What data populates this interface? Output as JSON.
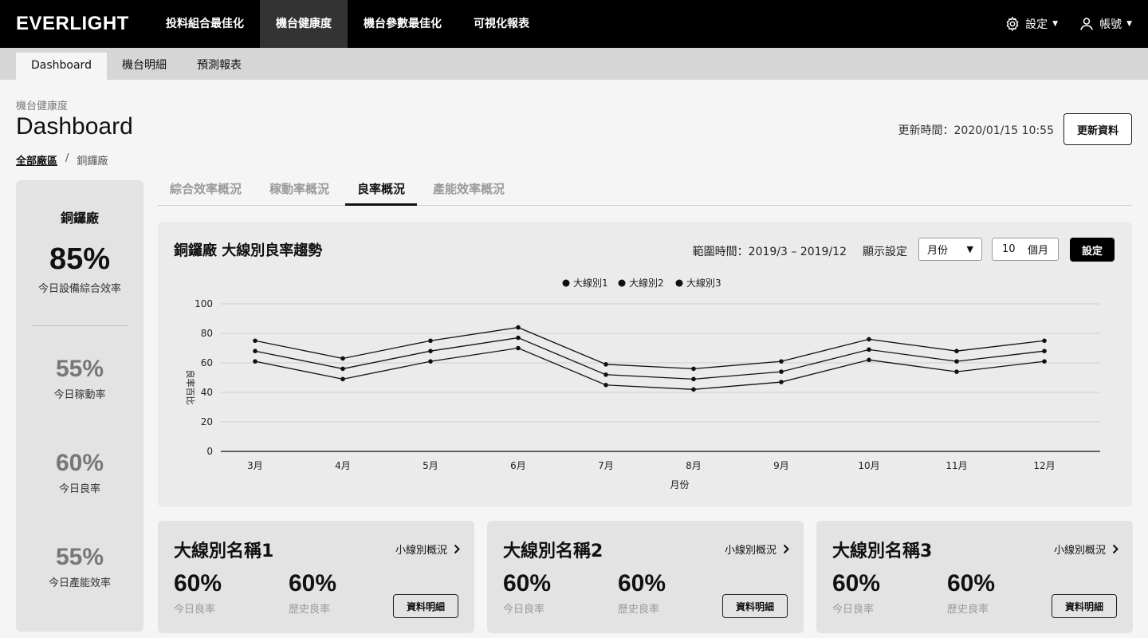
{
  "brand": "EVERLIGHT",
  "top_nav": [
    "投料組合最佳化",
    "機台健康度",
    "機台參數最佳化",
    "可視化報表"
  ],
  "top_nav_active": 1,
  "top_right": {
    "settings": "設定",
    "account": "帳號"
  },
  "sub_nav": [
    "Dashboard",
    "機台明細",
    "預測報表"
  ],
  "sub_nav_active": 0,
  "header": {
    "section": "機台健康度",
    "title": "Dashboard",
    "breadcrumb_root": "全部廠區",
    "breadcrumb_sep": "/",
    "breadcrumb_current": "銅鑼廠",
    "update_time": "更新時間：2020/01/15 10:55",
    "refresh_label": "更新資料"
  },
  "sidebar": {
    "factory": "銅鑼廠",
    "metrics": [
      {
        "value": "85%",
        "label": "今日設備綜合效率"
      },
      {
        "value": "55%",
        "label": "今日稼動率"
      },
      {
        "value": "60%",
        "label": "今日良率"
      },
      {
        "value": "55%",
        "label": "今日產能效率"
      }
    ]
  },
  "tabs": [
    "綜合效率概況",
    "稼動率概況",
    "良率概況",
    "產能效率概況"
  ],
  "tab_active": 2,
  "chart_panel": {
    "title": "銅鑼廠 大線別良率趨勢",
    "range": "範圍時間：2019/3 – 2019/12",
    "display_label": "顯示設定",
    "period_value": "月份",
    "months_value": "10",
    "months_unit": "個月",
    "set_label": "設定"
  },
  "chart_data": {
    "type": "line",
    "xlabel": "月份",
    "ylabel": "良率百比",
    "categories": [
      "3月",
      "4月",
      "5月",
      "6月",
      "7月",
      "8月",
      "9月",
      "10月",
      "11月",
      "12月"
    ],
    "ylim": [
      0,
      100
    ],
    "yticks": [
      0,
      20,
      40,
      60,
      80,
      100
    ],
    "grid": true,
    "legend_position": "top-center",
    "series": [
      {
        "name": "大線別1",
        "values": [
          75,
          63,
          75,
          84,
          59,
          56,
          61,
          76,
          68,
          75
        ]
      },
      {
        "name": "大線別2",
        "values": [
          68,
          56,
          68,
          77,
          52,
          49,
          54,
          69,
          61,
          68
        ]
      },
      {
        "name": "大線別3",
        "values": [
          61,
          49,
          61,
          70,
          45,
          42,
          47,
          62,
          54,
          61
        ]
      }
    ],
    "color": "#111111"
  },
  "cards": [
    {
      "name": "大線別名稱1",
      "link": "小線別概況",
      "today_value": "60%",
      "today_label": "今日良率",
      "history_value": "60%",
      "history_label": "歷史良率",
      "detail": "資料明細"
    },
    {
      "name": "大線別名稱2",
      "link": "小線別概況",
      "today_value": "60%",
      "today_label": "今日良率",
      "history_value": "60%",
      "history_label": "歷史良率",
      "detail": "資料明細"
    },
    {
      "name": "大線別名稱3",
      "link": "小線別概況",
      "today_value": "60%",
      "today_label": "今日良率",
      "history_value": "60%",
      "history_label": "歷史良率",
      "detail": "資料明細"
    }
  ],
  "icons": {
    "settings": "gear-icon",
    "account": "user-icon",
    "caret": "caret-down-icon",
    "chevron": "chevron-right-icon"
  }
}
